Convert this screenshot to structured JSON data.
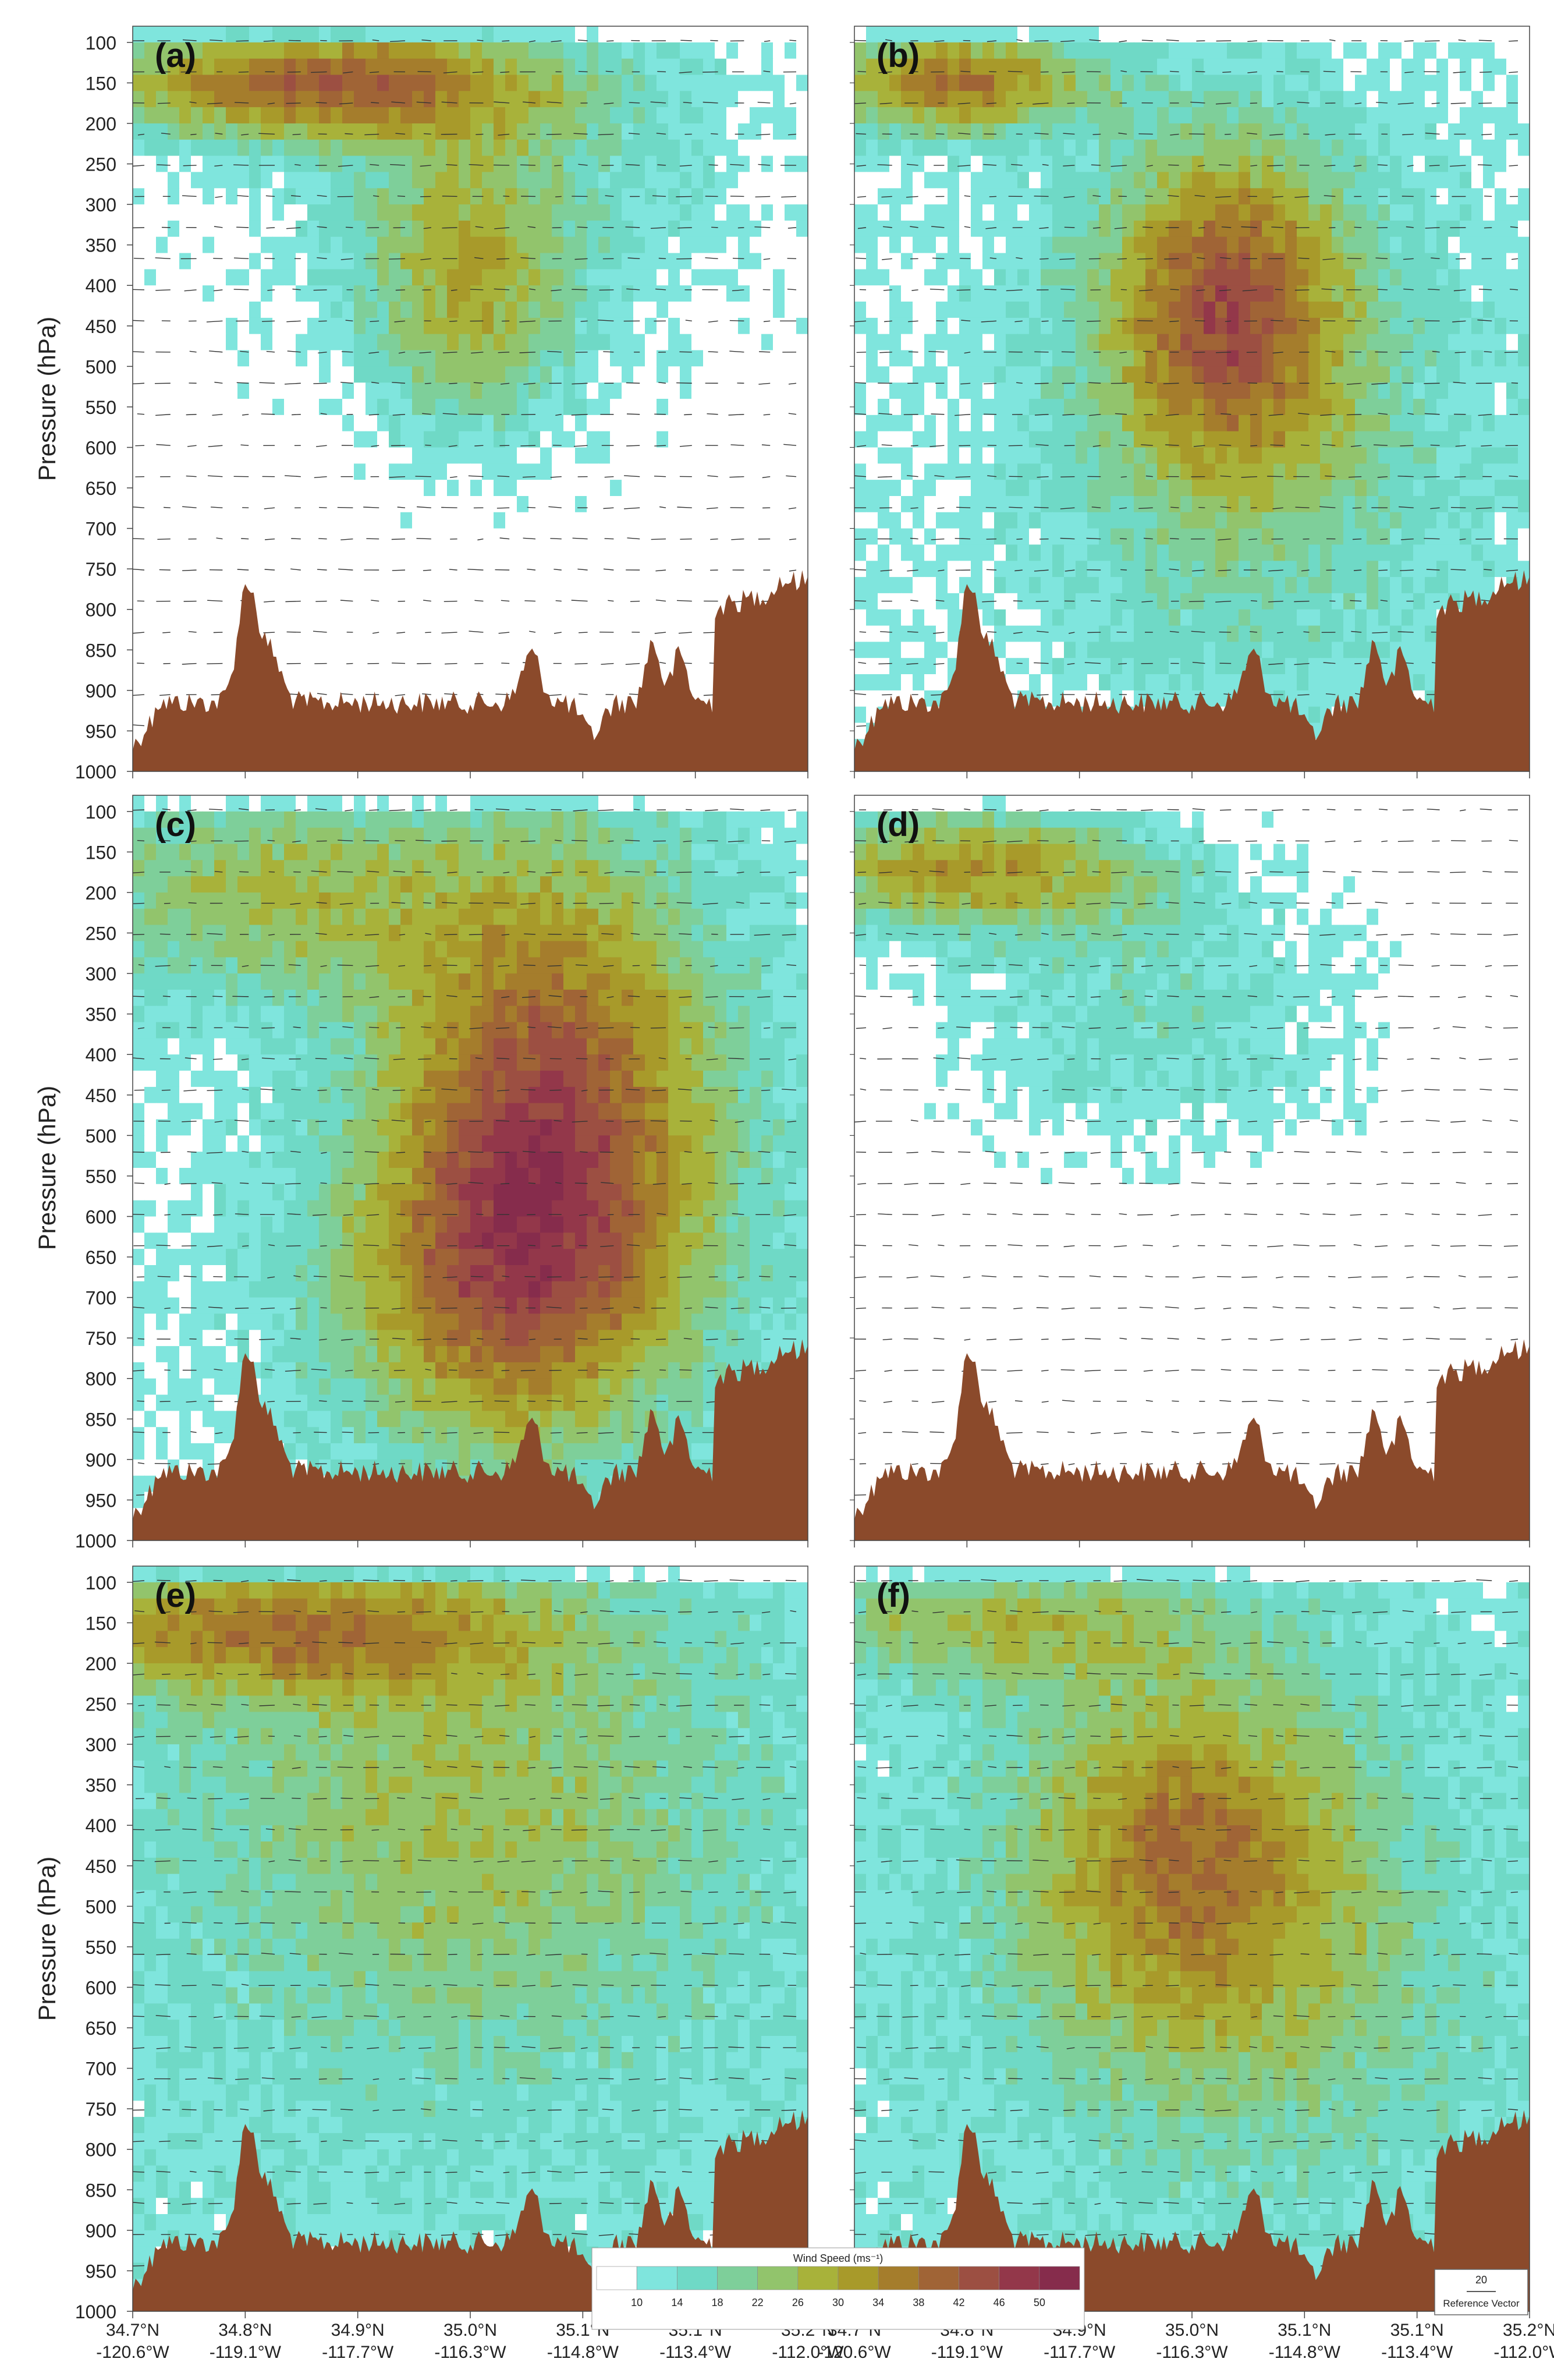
{
  "figure": {
    "ylabel": "Pressure (hPa)",
    "colorbar_title": "Wind Speed  (ms⁻¹)",
    "reference_vector": {
      "value": "20",
      "label": "Reference Vector"
    }
  },
  "chart_data": {
    "type": "heatmap",
    "ylabel": "Pressure (hPa)",
    "y_ticks": [
      100,
      150,
      200,
      250,
      300,
      350,
      400,
      450,
      500,
      550,
      600,
      650,
      700,
      750,
      800,
      850,
      900,
      950,
      1000
    ],
    "ylim": [
      1000,
      100
    ],
    "y_scale": "linear-inverted",
    "x_ticks": [
      {
        "lat": "34.7°N",
        "lon": "-120.6°W"
      },
      {
        "lat": "34.8°N",
        "lon": "-119.1°W"
      },
      {
        "lat": "34.9°N",
        "lon": "-117.7°W"
      },
      {
        "lat": "35.0°N",
        "lon": "-116.3°W"
      },
      {
        "lat": "35.1°N",
        "lon": "-114.8°W"
      },
      {
        "lat": "35.1°N",
        "lon": "-113.4°W"
      },
      {
        "lat": "35.2°N",
        "lon": "-112.0°W"
      }
    ],
    "colorbar": {
      "title": "Wind Speed  (ms⁻¹)",
      "levels": [
        10,
        14,
        18,
        22,
        26,
        30,
        34,
        38,
        42,
        46,
        50
      ],
      "colors": [
        "#ffffff",
        "#7fe5dd",
        "#6fd9c6",
        "#7ecf9a",
        "#92c46c",
        "#a8b23a",
        "#a89a2a",
        "#a57d2c",
        "#a06436",
        "#9c4f42",
        "#93374a",
        "#862c4c"
      ]
    },
    "terrain_color": "#8b4a2b",
    "panels": [
      {
        "label": "(a)",
        "max_speed_region": "upper-left jet 150 hPa"
      },
      {
        "label": "(b)",
        "max_speed_region": "mid-level 400 hPa"
      },
      {
        "label": "(c)",
        "max_speed_region": "deep core 300-800 hPa"
      },
      {
        "label": "(d)",
        "max_speed_region": "upper-left jet 150 hPa"
      },
      {
        "label": "(e)",
        "max_speed_region": "upper-left jet 150 hPa"
      },
      {
        "label": "(f)",
        "max_speed_region": "mid-level 400 hPa"
      }
    ]
  }
}
